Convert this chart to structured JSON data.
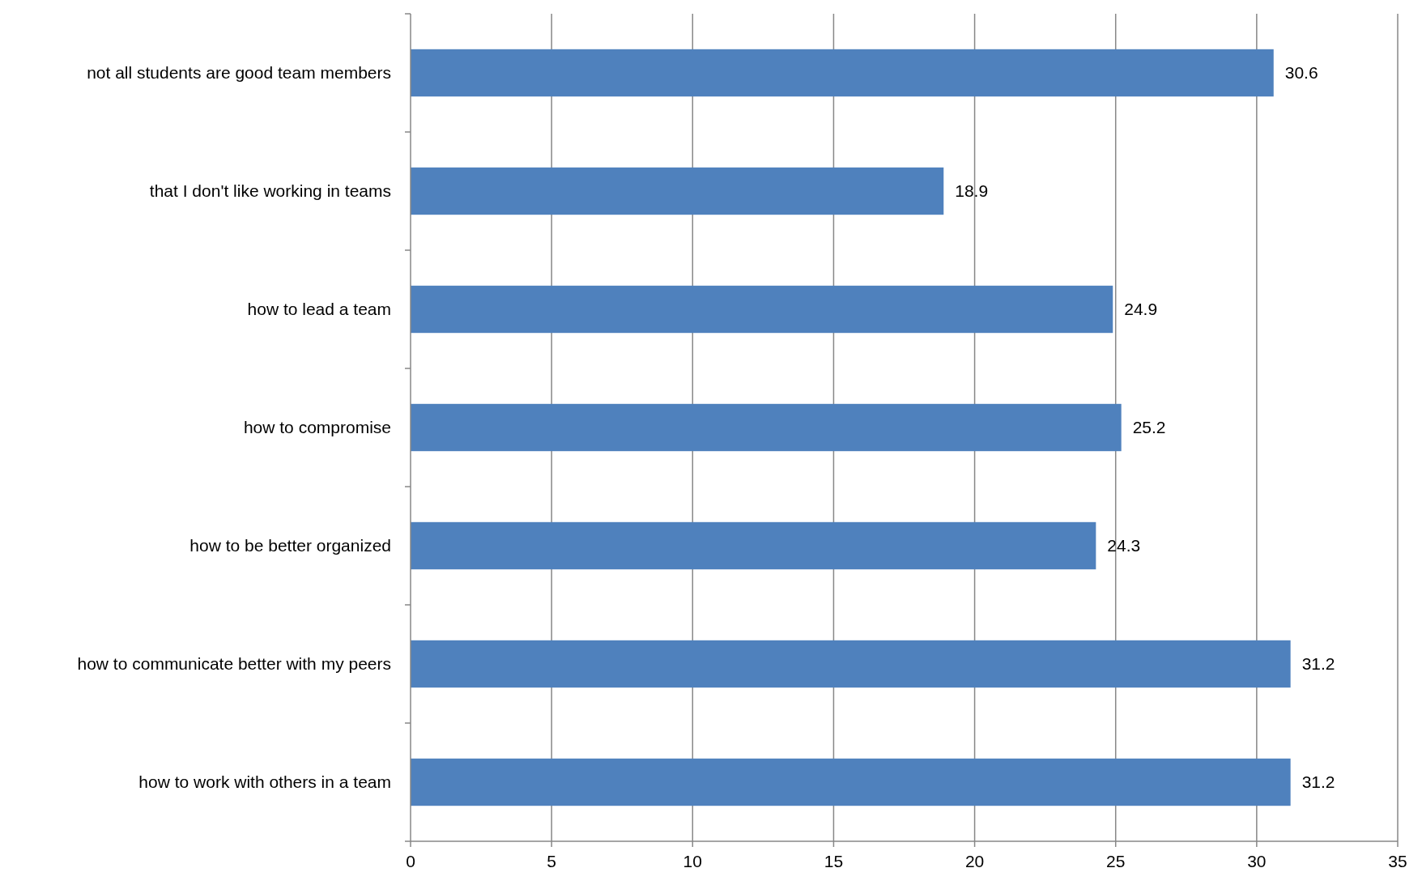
{
  "chart_data": {
    "type": "bar",
    "orientation": "horizontal",
    "categories": [
      "not all students are good team members",
      "that I don't like working in teams",
      "how to lead a team",
      "how to compromise",
      "how to be better organized",
      "how to communicate better with my peers",
      "how to work with others in a team"
    ],
    "values": [
      30.6,
      18.9,
      24.9,
      25.2,
      24.3,
      31.2,
      31.2
    ],
    "color": "#4f81bd",
    "xlim": [
      0,
      35
    ],
    "xticks": [
      0,
      5,
      10,
      15,
      20,
      25,
      30,
      35
    ],
    "grid": "x",
    "data_labels": true
  }
}
